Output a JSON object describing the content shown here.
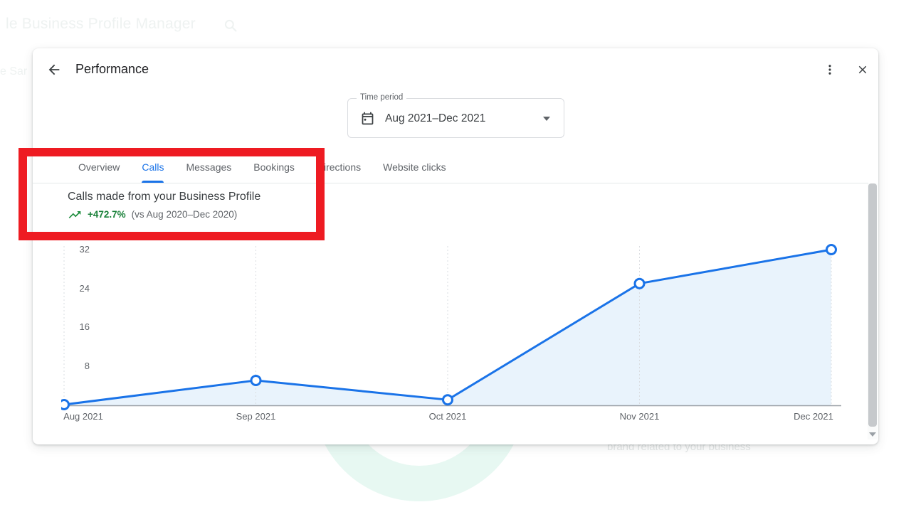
{
  "background": {
    "topbar_text": "le Business Profile Manager",
    "side_text": "e Sar",
    "bottom_text": "brand related to your business"
  },
  "modal": {
    "title": "Performance",
    "time_period": {
      "label": "Time period",
      "value": "Aug 2021–Dec 2021"
    },
    "tabs": [
      {
        "label": "Overview",
        "active": false
      },
      {
        "label": "Calls",
        "active": true
      },
      {
        "label": "Messages",
        "active": false
      },
      {
        "label": "Bookings",
        "active": false
      },
      {
        "label": "Directions",
        "active": false
      },
      {
        "label": "Website clicks",
        "active": false
      }
    ],
    "metric": {
      "title": "Calls made from your Business Profile",
      "change": "+472.7%",
      "comparison": "(vs Aug 2020–Dec 2020)"
    }
  },
  "chart_data": {
    "type": "area",
    "title": "Calls made from your Business Profile",
    "categories": [
      "Aug 2021",
      "Sep 2021",
      "Oct 2021",
      "Nov 2021",
      "Dec 2021"
    ],
    "values": [
      0,
      5,
      1,
      25,
      32
    ],
    "yticks": [
      8,
      16,
      24,
      32
    ],
    "ylim": [
      0,
      32
    ],
    "xlabel": "",
    "ylabel": "",
    "grid": "vertical-dashed",
    "legend": "none",
    "line_color": "#1a73e8",
    "fill_color": "#e9f3fc",
    "point_fill": "#ffffff",
    "grid_color": "#dadce0",
    "axis_color": "#9aa0a6"
  },
  "colors": {
    "accent_blue": "#1a73e8",
    "positive_green": "#188038",
    "annotation_red": "#ee1b22",
    "ring_mint": "#e7f8f2",
    "text_primary": "#202124",
    "text_secondary": "#5f6368"
  }
}
